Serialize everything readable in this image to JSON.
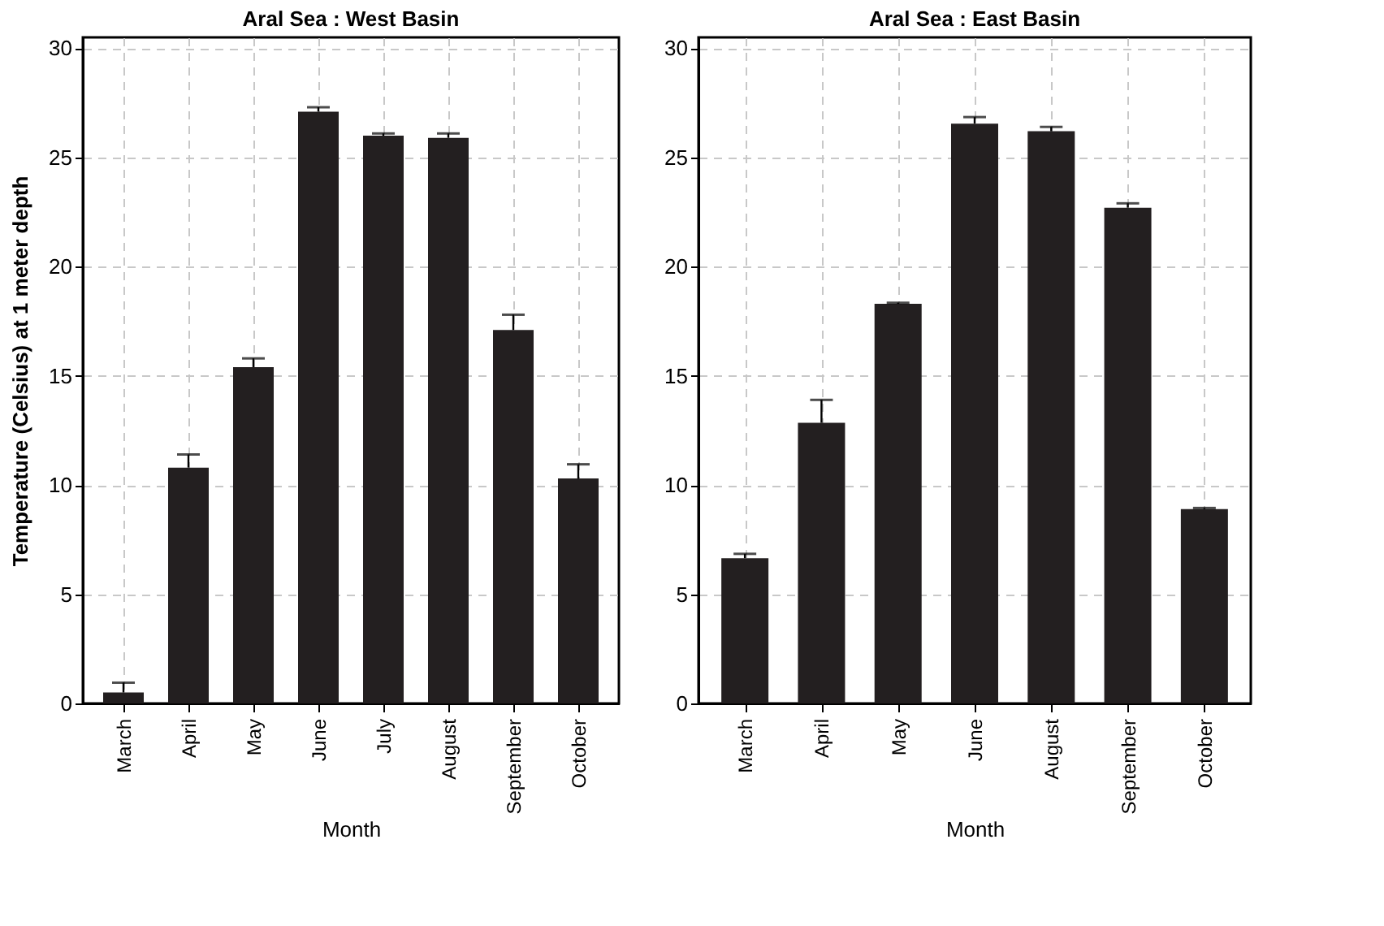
{
  "chart_data": [
    {
      "type": "bar",
      "title": "Aral Sea : West Basin",
      "xlabel": "Month",
      "ylabel": "Temperature (Celsius) at 1 meter depth",
      "categories": [
        "March",
        "April",
        "May",
        "June",
        "July",
        "August",
        "September",
        "October"
      ],
      "values": [
        0.5,
        10.8,
        15.4,
        27.1,
        26.0,
        25.9,
        17.1,
        10.3
      ],
      "errors": [
        [
          0.5,
          0.95
        ],
        [
          10.8,
          11.4
        ],
        [
          15.4,
          15.8
        ],
        [
          27.1,
          27.3
        ],
        [
          26.0,
          26.1
        ],
        [
          25.9,
          26.1
        ],
        [
          17.1,
          17.8
        ],
        [
          10.3,
          10.95
        ]
      ],
      "color": "#231f20",
      "ylim": [
        0,
        30.5
      ],
      "yticks": [
        0,
        5,
        10,
        15,
        20,
        25,
        30
      ],
      "grid": true
    },
    {
      "type": "bar",
      "title": "Aral Sea : East Basin",
      "xlabel": "Month",
      "categories": [
        "March",
        "April",
        "May",
        "June",
        "August",
        "September",
        "October"
      ],
      "values": [
        6.65,
        12.85,
        18.3,
        26.55,
        26.2,
        22.7,
        8.9
      ],
      "errors": [
        [
          6.65,
          6.85
        ],
        [
          12.85,
          13.9
        ],
        [
          18.3,
          18.35
        ],
        [
          26.55,
          26.85
        ],
        [
          26.2,
          26.4
        ],
        [
          22.7,
          22.9
        ],
        [
          8.9,
          8.95
        ]
      ],
      "color": "#231f20",
      "ylim": [
        0,
        30.5
      ],
      "yticks": [
        0,
        5,
        10,
        15,
        20,
        25,
        30
      ],
      "grid": true
    }
  ]
}
